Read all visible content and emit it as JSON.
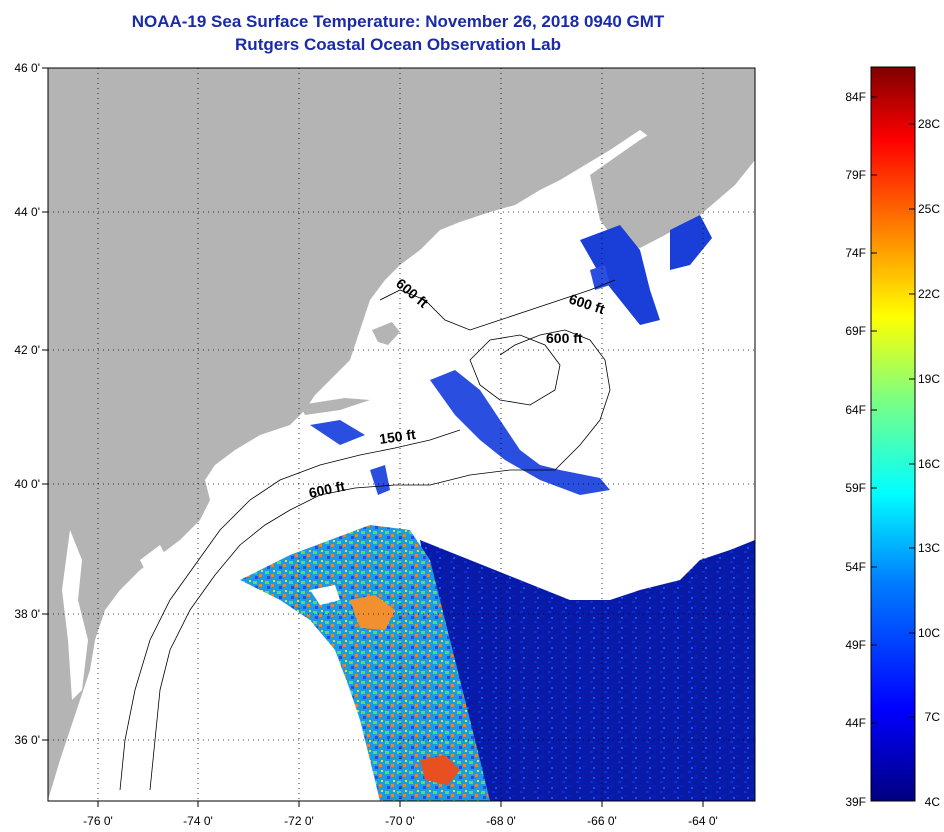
{
  "title": {
    "line1": "NOAA-19 Sea Surface Temperature:  November 26, 2018 0940 GMT",
    "line2": "Rutgers Coastal Ocean Observation Lab"
  },
  "map": {
    "lon_range": [
      -77,
      -63
    ],
    "lat_range": [
      35,
      46
    ],
    "lon_ticks": [
      "-76 0'",
      "-74 0'",
      "-72 0'",
      "-70 0'",
      "-68 0'",
      "-66 0'",
      "-64 0'"
    ],
    "lat_ticks": [
      "46 0'",
      "44 0'",
      "42 0'",
      "40 0'",
      "38 0'",
      "36 0'"
    ],
    "colors": {
      "land": "#b4b4b4",
      "ocean_no_data": "#ffffff",
      "grid": "#000000"
    },
    "contour_labels": [
      {
        "text": "600 ft"
      },
      {
        "text": "600 ft"
      },
      {
        "text": "600 ft"
      },
      {
        "text": "150 ft"
      },
      {
        "text": "600 ft"
      }
    ]
  },
  "colorbar": {
    "fahrenheit_labels": [
      "84F",
      "79F",
      "74F",
      "69F",
      "64F",
      "59F",
      "54F",
      "49F",
      "44F",
      "39F"
    ],
    "celsius_labels": [
      "28C",
      "25C",
      "22C",
      "19C",
      "16C",
      "13C",
      "10C",
      "7C",
      "4C"
    ],
    "gradient": [
      "#00007f",
      "#0000ff",
      "#007fff",
      "#00ffff",
      "#7fff7f",
      "#ffff00",
      "#ff7f00",
      "#ff0000",
      "#7f0000"
    ]
  }
}
